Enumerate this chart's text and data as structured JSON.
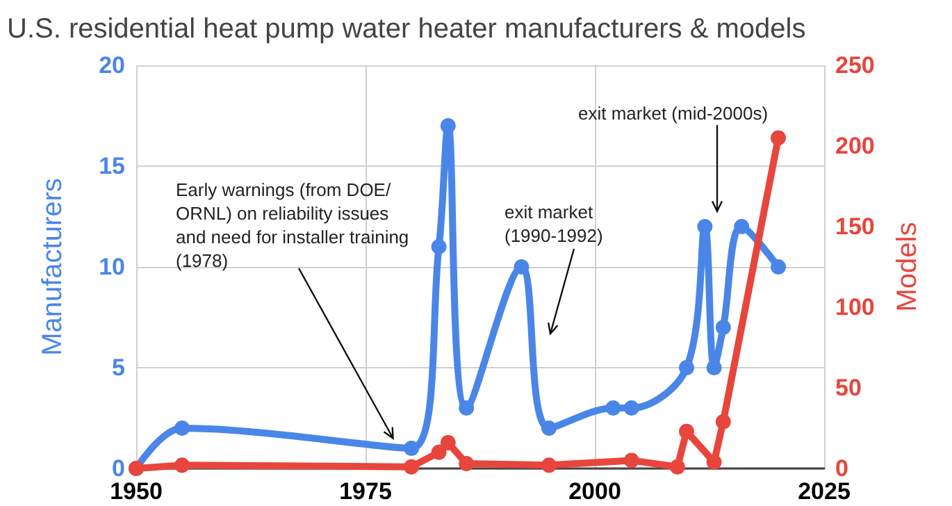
{
  "chart_data": {
    "type": "line",
    "title": "U.S. residential heat pump water heater manufacturers & models",
    "ylabel": "Manufacturers",
    "y2label": "Models",
    "xlim": [
      1950,
      2025
    ],
    "xticks": [
      1950,
      1975,
      2000,
      2025
    ],
    "ylim": [
      0,
      20
    ],
    "yticks": [
      0,
      5,
      10,
      15,
      20
    ],
    "y2lim": [
      0,
      250
    ],
    "y2ticks": [
      0,
      50,
      100,
      150,
      200,
      250
    ],
    "grid": true,
    "marker": "circle",
    "line_style": "solid",
    "series": [
      {
        "color": "#4a86e8",
        "x": [
          1950,
          1955,
          1980,
          1983,
          1984,
          1986,
          1992,
          1995,
          2002,
          2004,
          2010,
          2012,
          2013,
          2014,
          2016,
          2020
        ],
        "values": [
          0,
          2,
          1,
          11,
          17,
          3,
          10,
          2,
          3,
          3,
          5,
          12,
          5,
          7,
          12,
          10
        ]
      },
      {
        "color": "#e8453c",
        "axis": "y2",
        "x": [
          1950,
          1955,
          1980,
          1983,
          1984,
          1986,
          1995,
          2004,
          2009,
          2010,
          2013,
          2014,
          2020
        ],
        "values": [
          0,
          2,
          1,
          10,
          16,
          3,
          2,
          5,
          1,
          23,
          4,
          29,
          205
        ]
      }
    ],
    "annotations": [
      {
        "text": "Early warnings (from DOE/ ORNL) on reliability issues and need for installer training (1978)",
        "x": 1978,
        "y": 1.5
      },
      "exit market (1990-1992)",
      "exit market (mid-2000s)"
    ]
  }
}
